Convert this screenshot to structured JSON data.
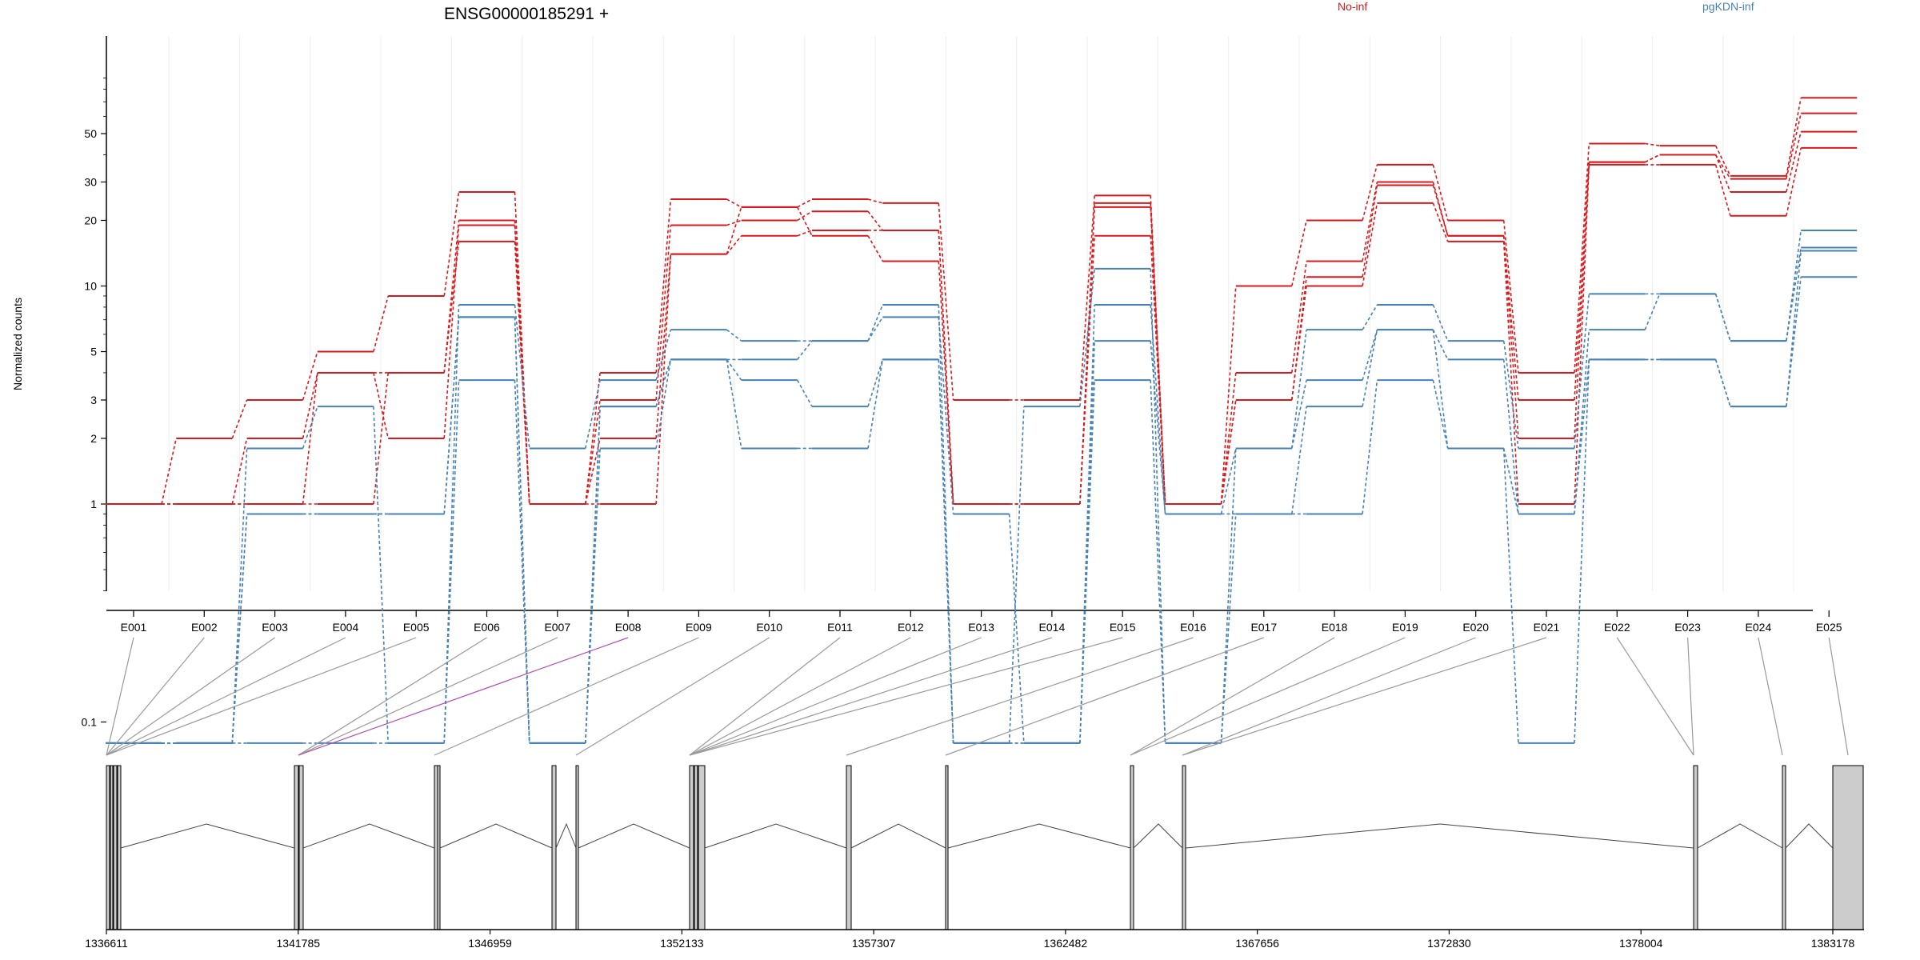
{
  "chart_data": {
    "type": "line",
    "title": "ENSG00000185291 +",
    "ylabel": "Normalized counts",
    "yscale": "log",
    "yticks": [
      "0.1",
      "1",
      "2",
      "3",
      "5",
      "10",
      "20",
      "30",
      "50"
    ],
    "categories": [
      "E001",
      "E002",
      "E003",
      "E004",
      "E005",
      "E006",
      "E007",
      "E008",
      "E009",
      "E010",
      "E011",
      "E012",
      "E013",
      "E014",
      "E015",
      "E016",
      "E017",
      "E018",
      "E019",
      "E020",
      "E021",
      "E022",
      "E023",
      "E024",
      "E025"
    ],
    "legend": [
      {
        "name": "No-inf",
        "color": "#d7191c"
      },
      {
        "name": "pgKDN-inf",
        "color": "#4682b4"
      }
    ],
    "series": [
      {
        "group": "No-inf",
        "values": [
          1,
          2,
          3,
          5,
          9,
          27,
          1,
          4,
          25,
          23,
          25,
          24,
          3,
          3,
          26,
          1,
          10,
          20,
          36,
          20,
          4,
          45,
          44,
          32,
          73
        ]
      },
      {
        "group": "No-inf",
        "values": [
          1,
          1,
          2,
          4,
          4,
          20,
          1,
          3,
          19,
          20,
          22,
          18,
          1,
          1,
          24,
          1,
          4,
          13,
          30,
          17,
          3,
          37,
          40,
          31,
          62
        ]
      },
      {
        "group": "No-inf",
        "values": [
          1,
          1,
          1,
          4,
          2,
          19,
          1,
          2,
          14,
          17,
          18,
          18,
          1,
          1,
          23,
          1,
          3,
          11,
          29,
          17,
          2,
          37,
          40,
          27,
          51
        ]
      },
      {
        "group": "No-inf",
        "values": [
          1,
          1,
          1,
          1,
          4,
          16,
          1,
          1,
          14,
          23,
          17,
          13,
          1,
          1,
          17,
          1,
          3,
          10,
          24,
          16,
          1,
          36,
          36,
          21,
          43
        ]
      },
      {
        "group": "pgKDN-inf",
        "values": [
          0.08,
          0.08,
          1.8,
          2.8,
          0.08,
          8.2,
          1.8,
          3.7,
          6.3,
          5.6,
          5.6,
          8.2,
          0.08,
          2.8,
          12,
          0.08,
          1.8,
          6.3,
          8.2,
          5.6,
          1.8,
          9.2,
          9.2,
          5.6,
          18
        ]
      },
      {
        "group": "pgKDN-inf",
        "values": [
          0.08,
          0.08,
          0.9,
          0.9,
          0.9,
          7.2,
          0.08,
          2.8,
          4.6,
          4.6,
          5.6,
          7.2,
          0.9,
          0.08,
          8.2,
          0.9,
          1.8,
          3.7,
          6.3,
          4.6,
          0.9,
          6.3,
          9.2,
          5.6,
          15
        ]
      },
      {
        "group": "pgKDN-inf",
        "values": [
          0.08,
          0.08,
          0.9,
          0.9,
          0.9,
          7.2,
          0.08,
          2.8,
          4.6,
          3.7,
          2.8,
          4.6,
          0.08,
          0.08,
          5.6,
          0.9,
          0.9,
          2.8,
          6.3,
          1.8,
          0.9,
          4.6,
          4.6,
          2.8,
          14.5
        ]
      },
      {
        "group": "pgKDN-inf",
        "values": [
          0.08,
          0.08,
          0.08,
          0.08,
          0.08,
          3.7,
          0.08,
          1.8,
          4.6,
          1.8,
          1.8,
          4.6,
          0.08,
          0.08,
          3.7,
          0.08,
          0.9,
          0.9,
          3.7,
          1.8,
          0.08,
          4.6,
          4.6,
          2.8,
          11
        ]
      }
    ],
    "gene_model": {
      "coordinate_ticks": [
        "1336611",
        "1341785",
        "1346959",
        "1352133",
        "1357307",
        "1362482",
        "1367656",
        "1372830",
        "1378004",
        "1383178"
      ],
      "highlighted_exon": "E008"
    }
  }
}
